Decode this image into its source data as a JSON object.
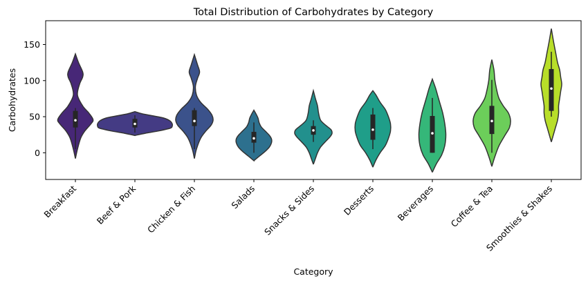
{
  "chart_data": {
    "type": "violin",
    "title": "Total Distribution of Carbohydrates by Category",
    "xlabel": "Category",
    "ylabel": "Carbohydrates",
    "ylim": [
      -37,
      183
    ],
    "yticks": [
      0,
      50,
      100,
      150
    ],
    "grid": false,
    "legend": "none",
    "categories": [
      "Breakfast",
      "Beef & Pork",
      "Chicken & Fish",
      "Salads",
      "Snacks & Sides",
      "Desserts",
      "Beverages",
      "Coffee & Tea",
      "Smoothies & Shakes"
    ],
    "colors": [
      "#472777",
      "#443b84",
      "#3b528b",
      "#2d708e",
      "#22908d",
      "#1f9e89",
      "#35b779",
      "#6cce5a",
      "#b8de29"
    ],
    "stats": [
      {
        "min": 5,
        "q1": 35,
        "median": 45,
        "q3": 58,
        "max": 62
      },
      {
        "min": 28,
        "q1": 35,
        "median": 40,
        "q3": 47,
        "max": 52
      },
      {
        "min": 5,
        "q1": 37,
        "median": 44,
        "q3": 59,
        "max": 62
      },
      {
        "min": 0,
        "q1": 14,
        "median": 20,
        "q3": 29,
        "max": 42
      },
      {
        "min": 15,
        "q1": 25,
        "median": 31,
        "q3": 37,
        "max": 45
      },
      {
        "min": 5,
        "q1": 18,
        "median": 32,
        "q3": 53,
        "max": 62
      },
      {
        "min": 0,
        "q1": 0,
        "median": 27,
        "q3": 51,
        "max": 76
      },
      {
        "min": 0,
        "q1": 26,
        "median": 44,
        "q3": 65,
        "max": 101
      },
      {
        "min": 50,
        "q1": 58,
        "median": 89,
        "q3": 116,
        "max": 140
      }
    ],
    "violin_profiles": [
      {
        "ys": [
          -8,
          5,
          20,
          30,
          40,
          46,
          55,
          65,
          80,
          95,
          105,
          112,
          125,
          137
        ],
        "ws": [
          0,
          2,
          5,
          9,
          15,
          17,
          13,
          7,
          2,
          4,
          7,
          7,
          3,
          0
        ]
      },
      {
        "ys": [
          24,
          27,
          30,
          34,
          37,
          40,
          44,
          48,
          51,
          54,
          57
        ],
        "ws": [
          0,
          10,
          22,
          34,
          36,
          36,
          34,
          28,
          18,
          7,
          0
        ]
      },
      {
        "ys": [
          -8,
          5,
          20,
          30,
          38,
          45,
          52,
          60,
          70,
          80,
          92,
          103,
          112,
          122,
          136
        ],
        "ws": [
          0,
          2,
          6,
          11,
          16,
          18,
          17,
          13,
          6,
          2,
          1,
          3,
          5,
          3,
          0
        ]
      },
      {
        "ys": [
          -11,
          -5,
          2,
          8,
          14,
          19,
          24,
          30,
          36,
          42,
          48,
          54,
          59
        ],
        "ws": [
          0,
          5,
          11,
          15,
          17,
          17,
          15,
          11,
          7,
          5,
          4,
          2,
          0
        ]
      },
      {
        "ys": [
          -16,
          -8,
          0,
          8,
          16,
          22,
          27,
          32,
          38,
          45,
          55,
          65,
          75,
          86
        ],
        "ws": [
          0,
          2,
          4,
          7,
          12,
          16,
          18,
          17,
          12,
          7,
          5,
          4,
          2,
          0
        ]
      },
      {
        "ys": [
          -20,
          -10,
          0,
          10,
          20,
          30,
          40,
          50,
          60,
          70,
          80,
          86
        ],
        "ws": [
          0,
          3,
          7,
          12,
          15,
          17,
          17,
          15,
          12,
          7,
          3,
          0
        ]
      },
      {
        "ys": [
          -27,
          -15,
          -3,
          10,
          25,
          40,
          55,
          70,
          80,
          90,
          102
        ],
        "ws": [
          0,
          4,
          9,
          12,
          13,
          12,
          10,
          7,
          5,
          3,
          0
        ]
      },
      {
        "ys": [
          -19,
          -5,
          10,
          25,
          35,
          45,
          55,
          65,
          75,
          85,
          100,
          115,
          129
        ],
        "ws": [
          0,
          3,
          7,
          13,
          17,
          18,
          16,
          11,
          7,
          5,
          3,
          2,
          0
        ]
      },
      {
        "ys": [
          15,
          25,
          35,
          45,
          55,
          65,
          75,
          85,
          95,
          105,
          115,
          125,
          140,
          155,
          172
        ],
        "ws": [
          0,
          2,
          4,
          6,
          7,
          7,
          8,
          9,
          10,
          9,
          8,
          6,
          4,
          2,
          0
        ]
      }
    ]
  }
}
